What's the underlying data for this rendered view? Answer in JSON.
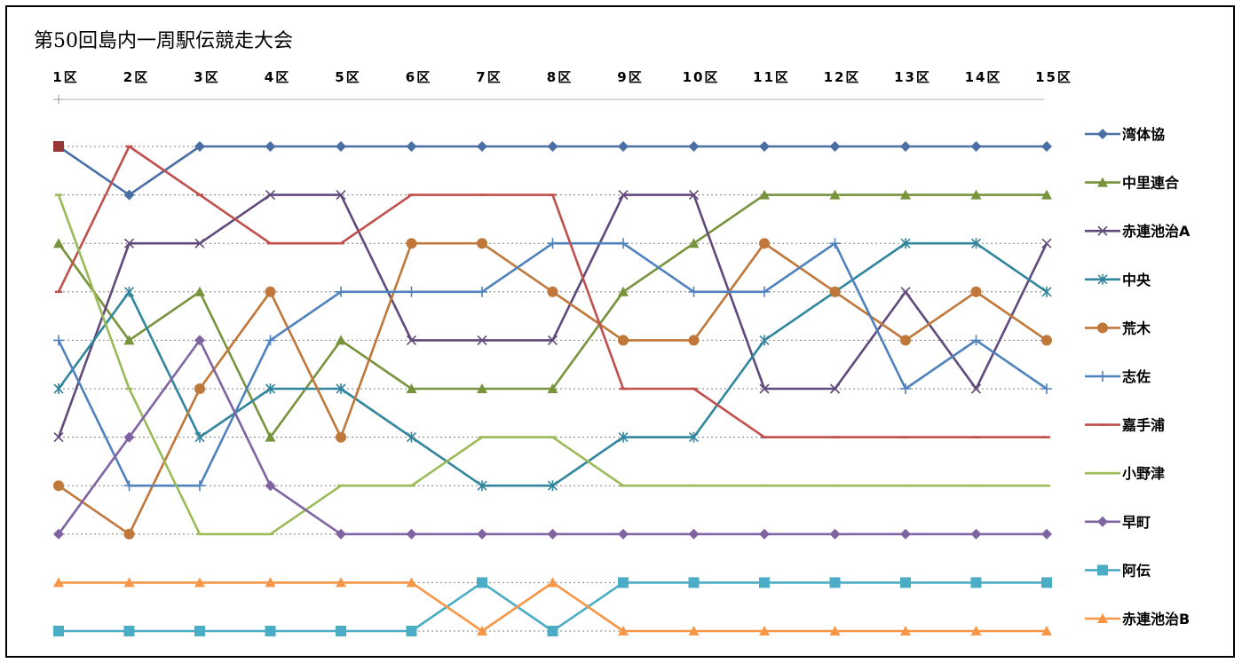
{
  "chart_data": {
    "type": "line",
    "title": "第50回島内一周駅伝競走大会",
    "categories": [
      "1区",
      "2区",
      "3区",
      "4区",
      "5区",
      "6区",
      "7区",
      "8区",
      "9区",
      "10区",
      "11区",
      "12区",
      "13区",
      "14区",
      "15区"
    ],
    "ylim": [
      11,
      1
    ],
    "y_reversed": true,
    "grid": "dotted horizontal",
    "legend_position": "right",
    "series": [
      {
        "name": "湾体協",
        "color": "#4a6fa5",
        "marker": "diamond",
        "values": [
          1,
          2,
          1,
          1,
          1,
          1,
          1,
          1,
          1,
          1,
          1,
          1,
          1,
          1,
          1
        ]
      },
      {
        "name": "中里連合",
        "color": "#77933c",
        "marker": "triangle",
        "values": [
          3,
          5,
          4,
          7,
          5,
          6,
          6,
          6,
          4,
          3,
          2,
          2,
          2,
          2,
          2
        ]
      },
      {
        "name": "赤連池治A",
        "color": "#604a7b",
        "marker": "x",
        "values": [
          7,
          3,
          3,
          2,
          2,
          5,
          5,
          5,
          2,
          2,
          6,
          6,
          4,
          6,
          3
        ]
      },
      {
        "name": "中央",
        "color": "#31859c",
        "marker": "star",
        "values": [
          6,
          4,
          7,
          6,
          6,
          7,
          8,
          8,
          7,
          7,
          5,
          4,
          3,
          3,
          4
        ]
      },
      {
        "name": "荒木",
        "color": "#c0773a",
        "marker": "circle",
        "values": [
          8,
          9,
          6,
          4,
          7,
          3,
          3,
          4,
          5,
          5,
          3,
          4,
          5,
          4,
          5
        ]
      },
      {
        "name": "志佐",
        "color": "#4f81bd",
        "marker": "plus",
        "values": [
          5,
          8,
          8,
          5,
          4,
          4,
          4,
          3,
          3,
          4,
          4,
          3,
          6,
          5,
          6
        ]
      },
      {
        "name": "嘉手浦",
        "color": "#c0504d",
        "marker": "dash",
        "values": [
          4,
          1,
          2,
          3,
          3,
          2,
          2,
          2,
          6,
          6,
          7,
          7,
          7,
          7,
          7
        ]
      },
      {
        "name": "小野津",
        "color": "#9bbb59",
        "marker": "dash",
        "values": [
          2,
          6,
          9,
          9,
          8,
          8,
          7,
          7,
          8,
          8,
          8,
          8,
          8,
          8,
          8
        ]
      },
      {
        "name": "早町",
        "color": "#8064a2",
        "marker": "diamond",
        "values": [
          9,
          7,
          5,
          8,
          9,
          9,
          9,
          9,
          9,
          9,
          9,
          9,
          9,
          9,
          9
        ]
      },
      {
        "name": "阿伝",
        "color": "#4bacc6",
        "marker": "square",
        "values": [
          11,
          11,
          11,
          11,
          11,
          11,
          10,
          11,
          10,
          10,
          10,
          10,
          10,
          10,
          10
        ]
      },
      {
        "name": "赤連池治B",
        "color": "#f79646",
        "marker": "triangle",
        "values": [
          10,
          10,
          10,
          10,
          10,
          10,
          11,
          10,
          11,
          11,
          11,
          11,
          11,
          11,
          11
        ]
      }
    ]
  }
}
